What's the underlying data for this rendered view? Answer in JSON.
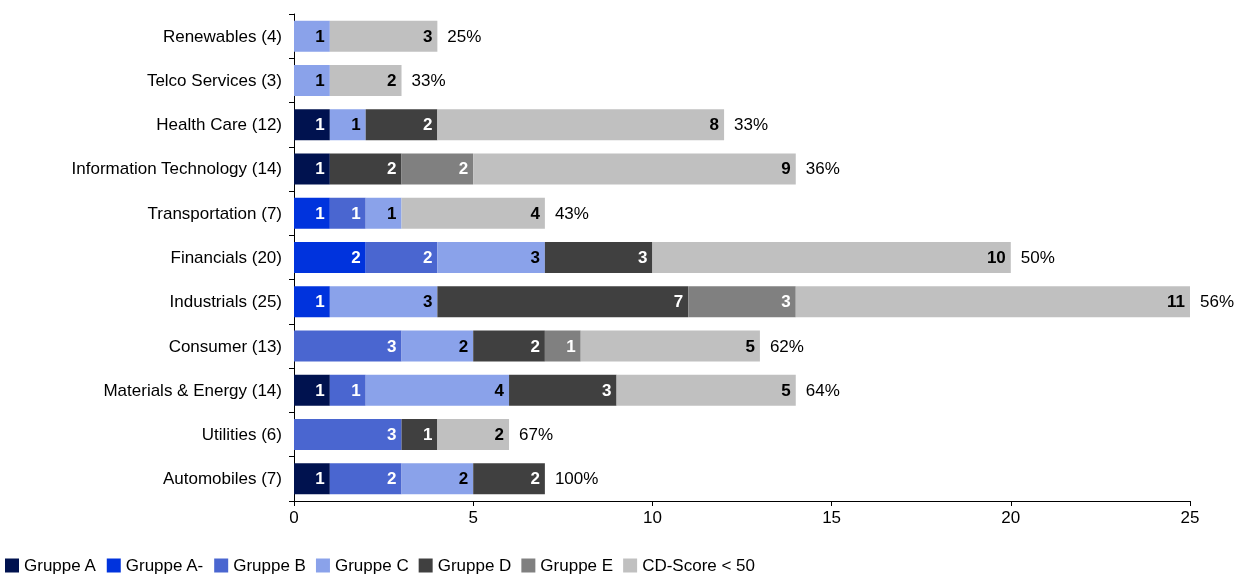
{
  "chart_data": {
    "type": "bar",
    "orientation": "horizontal",
    "stacked": true,
    "data_labels": true,
    "grid": false,
    "legend": "bottom",
    "categories": [
      "Renewables (4)",
      "Telco Services (3)",
      "Health Care (12)",
      "Information Technology (14)",
      "Transportation (7)",
      "Financials (20)",
      "Industrials (25)",
      "Consumer (13)",
      "Materials & Energy (14)",
      "Utilities (6)",
      "Automobiles (7)"
    ],
    "series": [
      {
        "name": "Gruppe A",
        "color": "#00124f",
        "values": [
          null,
          null,
          1,
          1,
          null,
          null,
          null,
          null,
          1,
          null,
          1
        ]
      },
      {
        "name": "Gruppe A-",
        "color": "#0033dd",
        "values": [
          null,
          null,
          null,
          null,
          1,
          2,
          1,
          null,
          null,
          null,
          null
        ]
      },
      {
        "name": "Gruppe B",
        "color": "#4a66d0",
        "values": [
          null,
          null,
          null,
          null,
          1,
          2,
          null,
          3,
          1,
          3,
          2
        ]
      },
      {
        "name": "Gruppe C",
        "color": "#8aa2ea",
        "values": [
          1,
          1,
          1,
          null,
          1,
          3,
          3,
          2,
          4,
          null,
          2
        ]
      },
      {
        "name": "Gruppe D",
        "color": "#404040",
        "values": [
          null,
          null,
          2,
          2,
          null,
          3,
          7,
          2,
          3,
          1,
          2
        ]
      },
      {
        "name": "Gruppe E",
        "color": "#808080",
        "values": [
          null,
          null,
          null,
          2,
          null,
          null,
          3,
          1,
          null,
          null,
          null
        ]
      },
      {
        "name": "CD-Score < 50",
        "color": "#c0c0c0",
        "values": [
          3,
          2,
          8,
          9,
          4,
          10,
          11,
          5,
          5,
          2,
          null
        ]
      }
    ],
    "xlim": [
      0,
      25
    ],
    "xticks": [
      0,
      5,
      10,
      15,
      20,
      25
    ],
    "annotations": [
      {
        "text": "25%",
        "x": 4,
        "y": "Renewables (4)"
      },
      {
        "text": "33%",
        "x": 3,
        "y": "Telco Services (3)"
      },
      {
        "text": "33%",
        "x": 12,
        "y": "Health Care (12)"
      },
      {
        "text": "36%",
        "x": 14,
        "y": "Information Technology (14)"
      },
      {
        "text": "43%",
        "x": 7,
        "y": "Transportation (7)"
      },
      {
        "text": "50%",
        "x": 20,
        "y": "Financials (20)"
      },
      {
        "text": "56%",
        "x": 25,
        "y": "Industrials (25)"
      },
      {
        "text": "62%",
        "x": 13,
        "y": "Consumer (13)"
      },
      {
        "text": "64%",
        "x": 14,
        "y": "Materials & Energy (14)"
      },
      {
        "text": "67%",
        "x": 6,
        "y": "Utilities (6)"
      },
      {
        "text": "100%",
        "x": 7,
        "y": "Automobiles (7)"
      }
    ]
  }
}
